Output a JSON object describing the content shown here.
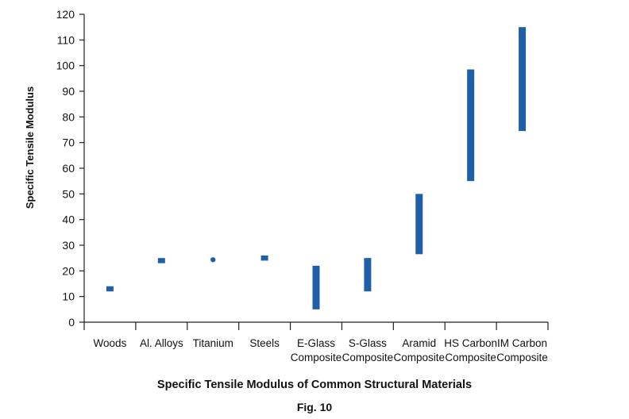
{
  "chart_data": {
    "type": "range-bar",
    "title": "Specific Tensile Modulus of Common Structural Materials",
    "figure_label": "Fig. 10",
    "xlabel": "",
    "ylabel": "Specific Tensile Modulus",
    "ylim": [
      0,
      120
    ],
    "yticks": [
      0,
      10,
      20,
      30,
      40,
      50,
      60,
      70,
      80,
      90,
      100,
      110,
      120
    ],
    "grid": false,
    "color": "#1f5fa8",
    "categories": [
      [
        "Woods"
      ],
      [
        "Al. Alloys"
      ],
      [
        "Titanium"
      ],
      [
        "Steels"
      ],
      [
        "E-Glass",
        "Composite"
      ],
      [
        "S-Glass",
        "Composite"
      ],
      [
        "Aramid",
        "Composite"
      ],
      [
        "HS Carbon",
        "Composite"
      ],
      [
        "IM Carbon",
        "Composite"
      ]
    ],
    "ranges": [
      [
        12,
        14
      ],
      [
        23,
        25
      ],
      [
        24,
        24.7
      ],
      [
        24,
        26
      ],
      [
        5,
        22
      ],
      [
        12,
        25
      ],
      [
        26.5,
        50
      ],
      [
        55,
        98.5
      ],
      [
        74.5,
        115
      ]
    ]
  }
}
